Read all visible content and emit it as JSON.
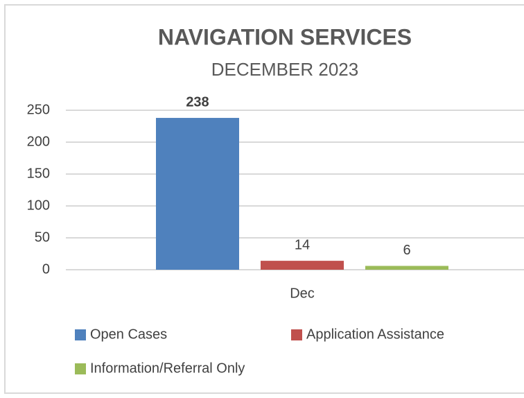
{
  "chart_data": {
    "type": "bar",
    "title": "NAVIGATION SERVICES",
    "subtitle": "DECEMBER 2023",
    "categories": [
      "Dec"
    ],
    "series": [
      {
        "name": "Open Cases",
        "color": "#4f81bd",
        "values": [
          238
        ]
      },
      {
        "name": "Application Assistance",
        "color": "#c0504d",
        "values": [
          14
        ]
      },
      {
        "name": "Information/Referral Only",
        "color": "#9bbb59",
        "values": [
          6
        ]
      }
    ],
    "ylim": [
      0,
      250
    ],
    "yticks": [
      0,
      50,
      100,
      150,
      200,
      250
    ],
    "grid": true,
    "legend": "bottom"
  }
}
